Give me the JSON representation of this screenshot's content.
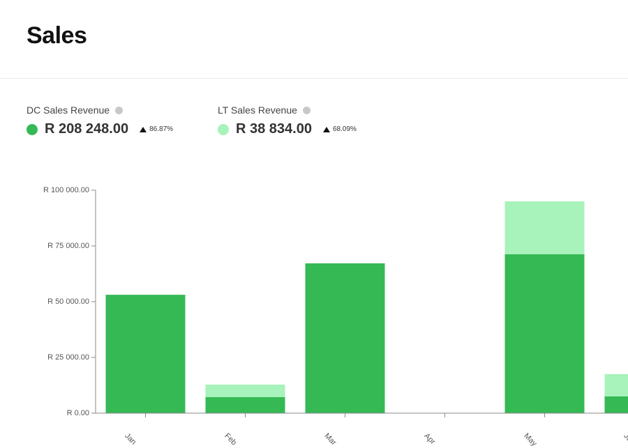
{
  "header": {
    "title": "Sales"
  },
  "summary": [
    {
      "total": "R 208 248.00",
      "change": "86.87%"
    },
    {
      "total": "R 38 834.00",
      "change": "68.09%"
    }
  ],
  "chart_data": {
    "type": "bar",
    "stacked": true,
    "categories": [
      "Jan",
      "Feb",
      "Mar",
      "Apr",
      "May",
      "Jun"
    ],
    "series": [
      {
        "name": "DC Sales Revenue",
        "color": "#35b955",
        "values": [
          53100,
          7200,
          67200,
          0,
          71300,
          7500
        ]
      },
      {
        "name": "LT Sales Revenue",
        "color": "#a8f2bb",
        "values": [
          0,
          5600,
          0,
          0,
          23700,
          10000
        ]
      }
    ],
    "ylim": [
      0,
      100000
    ],
    "yticks": [
      {
        "value": 0,
        "label": "R 0.00"
      },
      {
        "value": 25000,
        "label": "R 25 000.00"
      },
      {
        "value": 50000,
        "label": "R 50 000.00"
      },
      {
        "value": 75000,
        "label": "R 75 000.00"
      },
      {
        "value": 100000,
        "label": "R 100 000.00"
      }
    ]
  }
}
